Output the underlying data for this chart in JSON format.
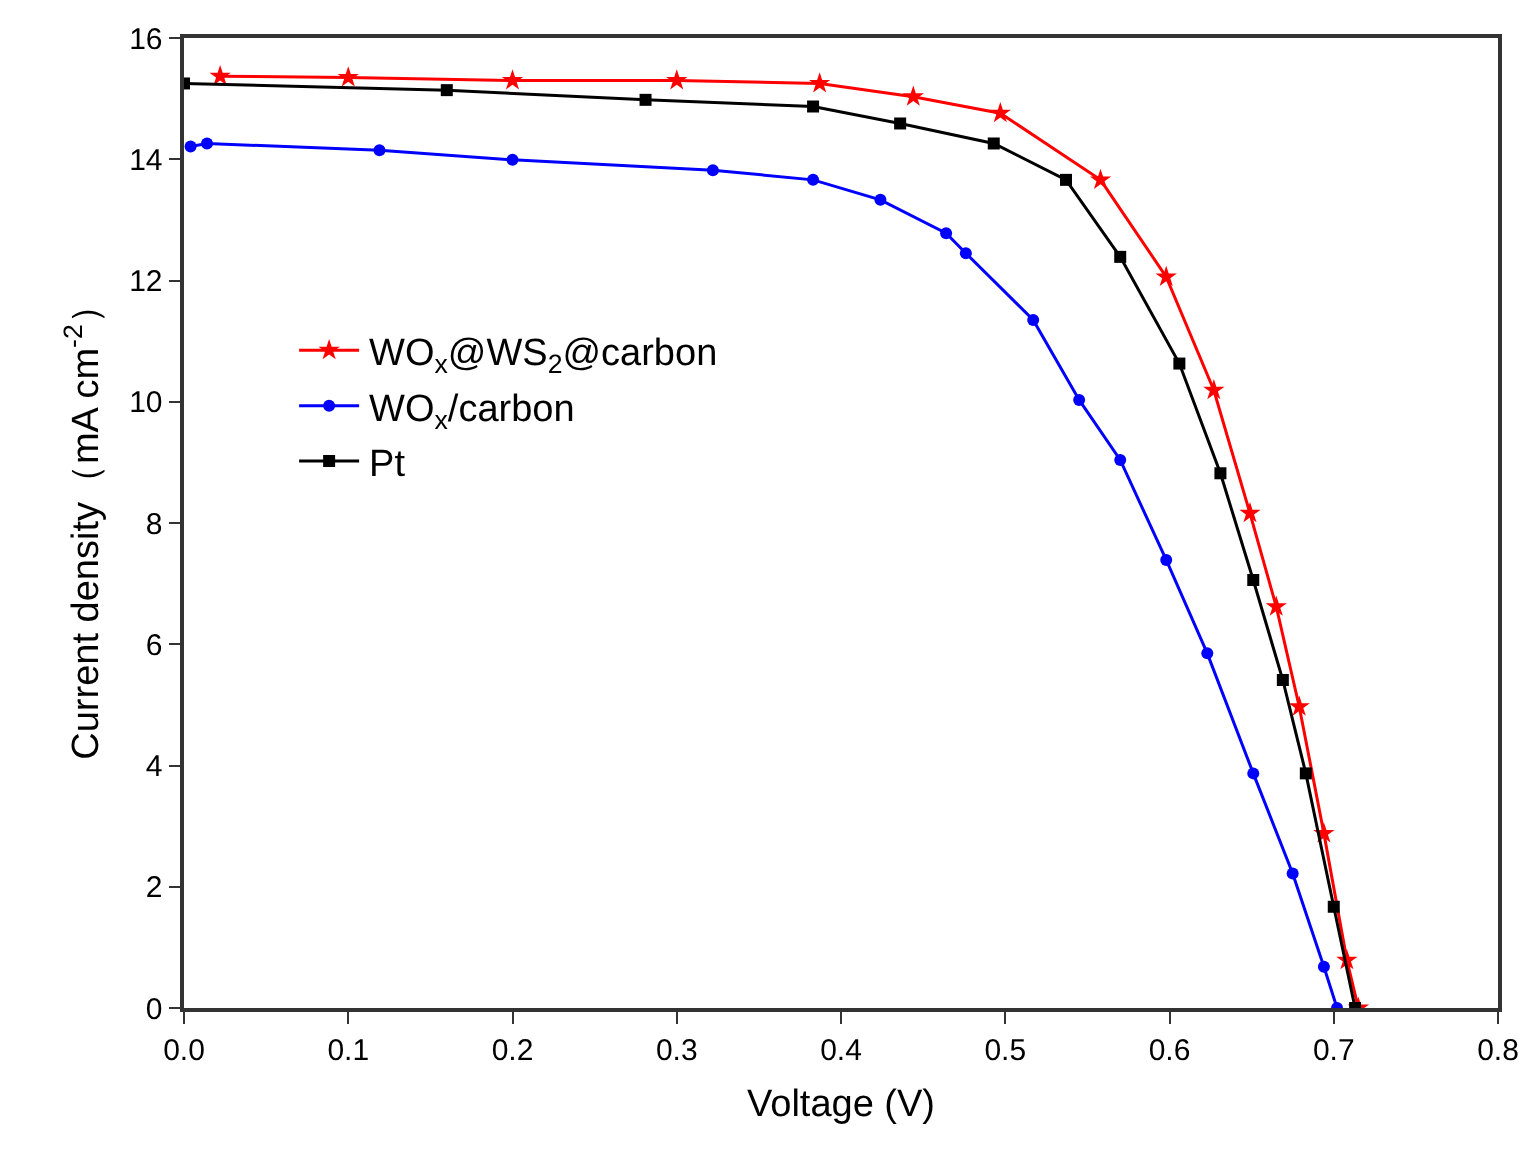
{
  "chart_data": {
    "type": "line",
    "xlabel": "Voltage (V)",
    "ylabel": "Current density（mA cm$^{-2}$）",
    "xlim": [
      0,
      0.8
    ],
    "ylim": [
      0,
      16
    ],
    "xticks": [
      {
        "value": 0,
        "label": "0.0"
      },
      {
        "value": 0.1,
        "label": "0.1"
      },
      {
        "value": 0.2,
        "label": "0.2"
      },
      {
        "value": 0.3,
        "label": "0.3"
      },
      {
        "value": 0.4,
        "label": "0.4"
      },
      {
        "value": 0.5,
        "label": "0.5"
      },
      {
        "value": 0.6,
        "label": "0.6"
      },
      {
        "value": 0.7,
        "label": "0.7"
      },
      {
        "value": 0.8,
        "label": "0.8"
      }
    ],
    "yticks": [
      0,
      2,
      4,
      6,
      8,
      10,
      12,
      14,
      16
    ],
    "grid": false,
    "legend": "left",
    "line_style": "solid",
    "series": [
      {
        "name": "WO$_{x}$@WS$_{2}$@carbon",
        "color": "#ff0000",
        "marker": "star",
        "x": [
          0.022,
          0.1,
          0.2,
          0.3,
          0.387,
          0.444,
          0.497,
          0.558,
          0.598,
          0.627,
          0.649,
          0.665,
          0.679,
          0.694,
          0.708,
          0.715
        ],
        "values": [
          15.37,
          15.35,
          15.3,
          15.3,
          15.25,
          15.03,
          14.76,
          13.66,
          12.06,
          10.19,
          8.16,
          6.62,
          4.97,
          2.88,
          0.79,
          0
        ]
      },
      {
        "name": "WO$_{x}$/carbon",
        "color": "#0000ff",
        "marker": "circle",
        "x": [
          0.004,
          0.014,
          0.119,
          0.2,
          0.322,
          0.383,
          0.424,
          0.464,
          0.476,
          0.517,
          0.545,
          0.57,
          0.598,
          0.623,
          0.651,
          0.675,
          0.694,
          0.702
        ],
        "values": [
          14.21,
          14.26,
          14.15,
          13.99,
          13.82,
          13.66,
          13.33,
          12.78,
          12.45,
          11.35,
          10.03,
          9.04,
          7.39,
          5.85,
          3.87,
          2.22,
          0.68,
          0
        ]
      },
      {
        "name": "Pt",
        "color": "#000000",
        "marker": "square",
        "x": [
          0,
          0.16,
          0.281,
          0.383,
          0.436,
          0.493,
          0.537,
          0.57,
          0.606,
          0.631,
          0.651,
          0.669,
          0.683,
          0.7,
          0.713
        ],
        "values": [
          15.25,
          15.14,
          14.98,
          14.87,
          14.59,
          14.26,
          13.66,
          12.39,
          10.63,
          8.82,
          7.06,
          5.41,
          3.87,
          1.67,
          0
        ]
      }
    ]
  }
}
